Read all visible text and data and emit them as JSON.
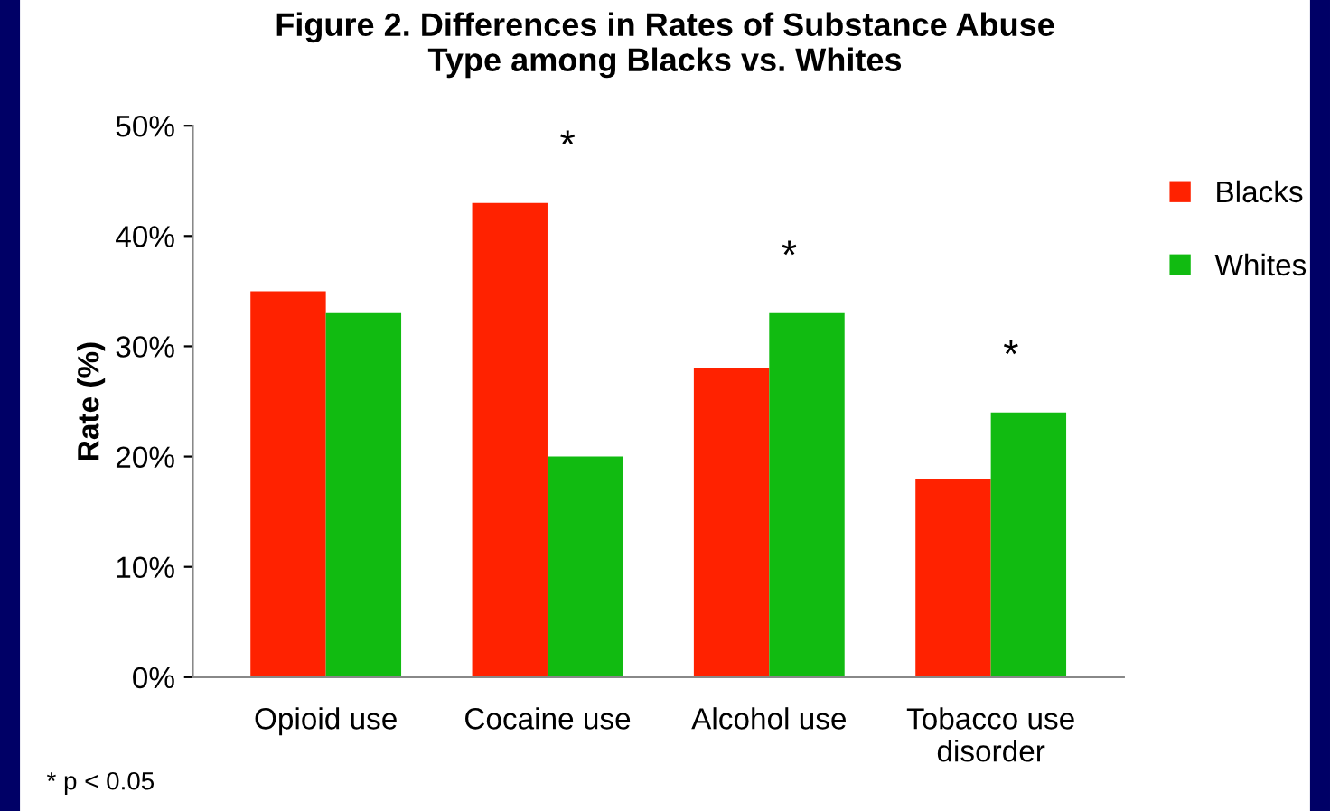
{
  "chart_data": {
    "type": "bar",
    "title": "Figure 2. Differences in Rates of Substance Abuse\nType among Blacks vs. Whites",
    "ylabel": "Rate (%)",
    "categories": [
      "Opioid use",
      "Cocaine use",
      "Alcohol use",
      "Tobacco use\ndisorder"
    ],
    "series": [
      {
        "name": "Blacks",
        "color": "#ff2200",
        "values": [
          35,
          43,
          28,
          18
        ]
      },
      {
        "name": "Whites",
        "color": "#11bb11",
        "values": [
          33,
          20,
          33,
          24
        ]
      }
    ],
    "ylim": [
      0,
      50
    ],
    "yticks": [
      {
        "value": 0,
        "label": "0%"
      },
      {
        "value": 10,
        "label": "10%"
      },
      {
        "value": 20,
        "label": "20%"
      },
      {
        "value": 30,
        "label": "30%"
      },
      {
        "value": 40,
        "label": "40%"
      },
      {
        "value": 50,
        "label": "50%"
      }
    ],
    "annotations": [
      {
        "text": "*",
        "x": "Cocaine use",
        "y": 43
      },
      {
        "text": "*",
        "x": "Alcohol use",
        "y": 33
      },
      {
        "text": "*",
        "x": "Tobacco use\ndisorder",
        "y": 24
      },
      "* p < 0.05"
    ],
    "legend": "right",
    "grid": false
  }
}
